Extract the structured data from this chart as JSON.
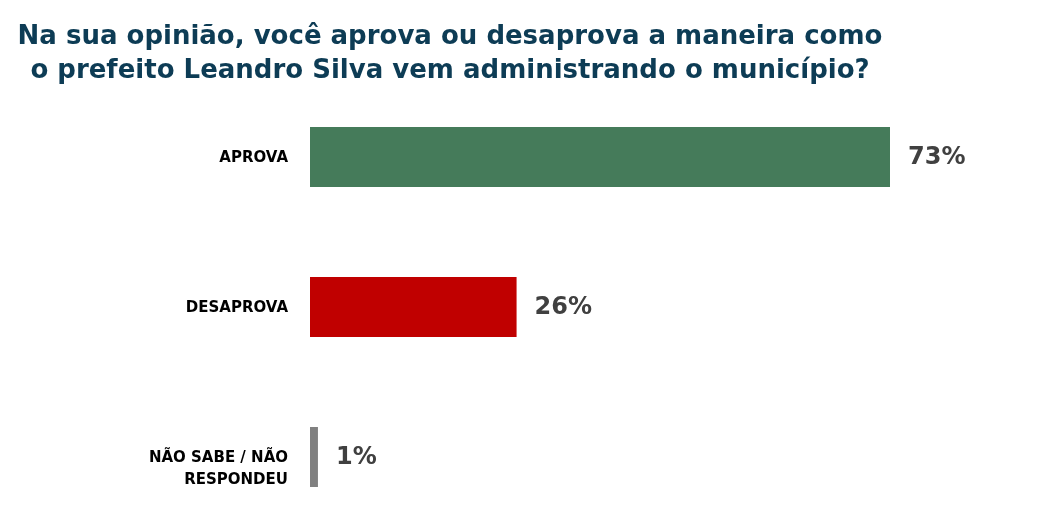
{
  "chart_data": {
    "type": "bar",
    "orientation": "horizontal",
    "title": "Na sua opinião, você aprova ou desaprova a maneira como o prefeito Leandro Silva vem administrando o município?",
    "categories": [
      "APROVA",
      "DESAPROVA",
      "NÃO SABE / NÃO RESPONDEU"
    ],
    "values": [
      73,
      26,
      1
    ],
    "colors": [
      "#457b5a",
      "#c00000",
      "#808080"
    ],
    "value_labels": [
      "73%",
      "26%",
      "1%"
    ],
    "legend": false
  }
}
